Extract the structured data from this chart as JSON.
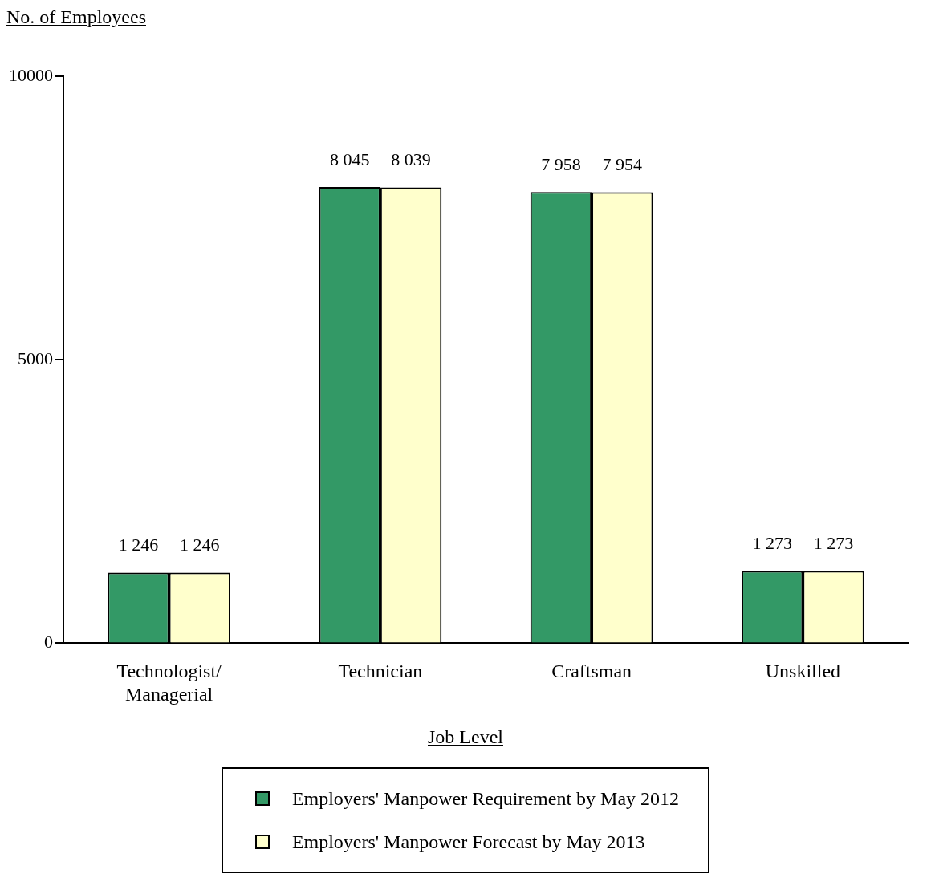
{
  "chart_data": {
    "type": "bar",
    "xlabel": "Job Level",
    "ylabel": "No. of Employees",
    "categories": [
      "Technologist/Managerial",
      "Technician",
      "Craftsman",
      "Unskilled"
    ],
    "series": [
      {
        "name": "Employers' Manpower Requirement by May 2012",
        "color": "#339966",
        "values": [
          1246,
          8045,
          7958,
          1273
        ],
        "value_labels": [
          "1 246",
          "8 045",
          "7 958",
          "1 273"
        ]
      },
      {
        "name": "Employers' Manpower Forecast by May 2013",
        "color": "#ffffcc",
        "values": [
          1246,
          8039,
          7954,
          1273
        ],
        "value_labels": [
          "1 246",
          "8 039",
          "7 954",
          "1 273"
        ]
      }
    ],
    "ylim": [
      0,
      10000
    ],
    "yticks": [
      0,
      5000,
      10000
    ],
    "grid": false,
    "legend": "bottom"
  }
}
